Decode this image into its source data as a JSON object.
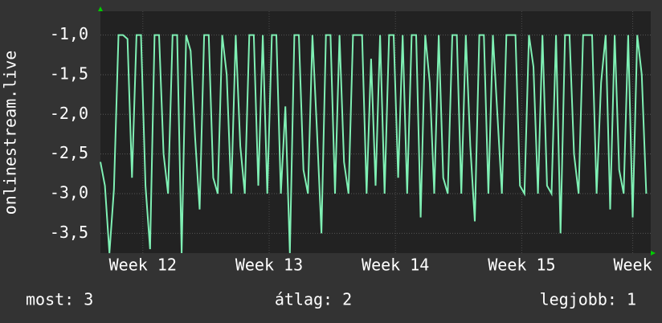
{
  "chart_data": {
    "type": "line",
    "y_label": "onlinestream.live",
    "x": [
      0,
      0.25,
      0.5,
      0.75,
      1,
      1.25,
      1.5,
      1.75,
      2,
      2.25,
      2.5,
      2.75,
      3,
      3.25,
      3.5,
      3.75,
      4,
      4.25,
      4.5,
      4.75,
      5,
      5.25,
      5.5,
      5.75,
      6,
      6.25,
      6.5,
      6.75,
      7,
      7.25,
      7.5,
      7.75,
      8,
      8.25,
      8.5,
      8.75,
      9,
      9.25,
      9.5,
      9.75,
      10,
      10.25,
      10.5,
      10.75,
      11,
      11.25,
      11.5,
      11.75,
      12,
      12.25,
      12.5,
      12.75,
      13,
      13.25,
      13.5,
      13.75,
      14,
      14.25,
      14.5,
      14.75,
      15,
      15.25,
      15.5,
      15.75,
      16,
      16.25,
      16.5,
      16.75,
      17,
      17.25,
      17.5,
      17.75,
      18,
      18.25,
      18.5,
      18.75,
      19,
      19.25,
      19.5,
      19.75,
      20,
      20.25,
      20.5,
      20.75,
      21,
      21.25,
      21.5,
      21.75,
      22,
      22.25,
      22.5,
      22.75,
      23,
      23.25,
      23.5,
      23.75,
      24,
      24.25,
      24.5,
      24.75,
      25,
      25.25,
      25.5,
      25.75,
      26,
      26.25,
      26.5,
      26.75,
      27,
      27.25,
      27.5,
      27.75,
      28,
      28.25,
      28.5,
      28.75,
      29,
      29.25,
      29.5,
      29.75,
      30,
      30.25
    ],
    "series": [
      {
        "name": "onlinestream.live",
        "color": "#7ff0b4",
        "values": [
          -2.6,
          -2.9,
          -3.75,
          -2.95,
          -1,
          -1,
          -1.05,
          -2.8,
          -1,
          -1,
          -2.9,
          -3.7,
          -1,
          -1,
          -2.5,
          -3.0,
          -1,
          -1,
          -3.75,
          -1,
          -1.2,
          -2.3,
          -3.2,
          -1,
          -1,
          -2.8,
          -3.0,
          -1,
          -1.5,
          -3.0,
          -1,
          -2.4,
          -3.0,
          -1,
          -1,
          -2.9,
          -1,
          -3.0,
          -1,
          -1,
          -3.0,
          -1.9,
          -3.75,
          -1,
          -1,
          -2.7,
          -3.0,
          -1,
          -2.2,
          -3.5,
          -1,
          -1,
          -3.0,
          -1,
          -2.6,
          -3.0,
          -1,
          -1,
          -1,
          -3.0,
          -1.3,
          -2.9,
          -1,
          -3.0,
          -1,
          -1,
          -2.8,
          -1,
          -3.0,
          -1,
          -1,
          -3.3,
          -1,
          -1.6,
          -3.0,
          -1,
          -2.8,
          -3.0,
          -1,
          -1,
          -3.0,
          -1,
          -2.4,
          -3.35,
          -1,
          -1,
          -3.0,
          -1,
          -2.0,
          -3.0,
          -1,
          -1,
          -1,
          -2.9,
          -3.0,
          -1,
          -1.4,
          -3.0,
          -1,
          -2.9,
          -3.0,
          -1,
          -3.5,
          -1,
          -1,
          -2.5,
          -3.0,
          -1,
          -1,
          -1,
          -3.0,
          -1.6,
          -1,
          -3.2,
          -1,
          -2.7,
          -3.0,
          -1,
          -3.3,
          -1,
          -1.5,
          -3.0
        ]
      }
    ],
    "xlim": [
      0,
      30.5
    ],
    "xticks": [
      {
        "value": 2.35,
        "label": "Week 12"
      },
      {
        "value": 9.35,
        "label": "Week 13"
      },
      {
        "value": 16.35,
        "label": "Week 14"
      },
      {
        "value": 23.35,
        "label": "Week 15"
      },
      {
        "value": 29.5,
        "label": "Week"
      }
    ],
    "ylim": [
      -3.75,
      -0.7
    ],
    "yticks": [
      {
        "value": -3.5,
        "label": "-3,5"
      },
      {
        "value": -3.0,
        "label": "-3,0"
      },
      {
        "value": -2.5,
        "label": "-2,5"
      },
      {
        "value": -2.0,
        "label": "-2,0"
      },
      {
        "value": -1.5,
        "label": "-1,5"
      },
      {
        "value": -1.0,
        "label": "-1,0"
      }
    ],
    "grid": true,
    "annotations": [
      "most: 3",
      "átlag: 2",
      "legjobb: 1"
    ]
  }
}
